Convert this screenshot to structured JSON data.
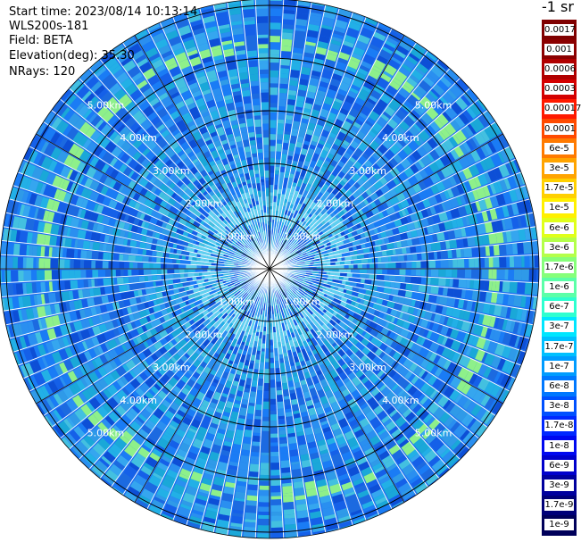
{
  "info": {
    "start_time": "Start time: 2023/08/14 10:13:14",
    "device": "WLS200s-181",
    "field": "Field: BETA",
    "elevation": "Elevation(deg): 35.30",
    "nrays": "NRays: 120"
  },
  "colorbar": {
    "unit": "-1 sr",
    "labels": [
      "0.0017",
      "0.001",
      "0.0006",
      "0.0003",
      "0.00017",
      "0.0001",
      "6e-5",
      "3e-5",
      "1.7e-5",
      "1e-5",
      "6e-6",
      "3e-6",
      "1.7e-6",
      "1e-6",
      "6e-7",
      "3e-7",
      "1.7e-7",
      "1e-7",
      "6e-8",
      "3e-8",
      "1.7e-8",
      "1e-8",
      "6e-9",
      "3e-9",
      "1.7e-9",
      "1e-9"
    ],
    "colors": [
      "#7f0000",
      "#8b0000",
      "#b00000",
      "#d40000",
      "#ff1a00",
      "#ff4a00",
      "#ff7a00",
      "#ffa400",
      "#ffd000",
      "#fff000",
      "#e0ff1a",
      "#b4ff4a",
      "#86ff7a",
      "#5cffa8",
      "#2effd0",
      "#00e6ff",
      "#00c0ff",
      "#009cff",
      "#0078ff",
      "#0050ff",
      "#0028ff",
      "#0008f0",
      "#0000cc",
      "#00009e",
      "#000078",
      "#00005a"
    ]
  },
  "rings": [
    {
      "label": "1.00km"
    },
    {
      "label": "2.00km"
    },
    {
      "label": "3.00km"
    },
    {
      "label": "4.00km"
    },
    {
      "label": "5.00km"
    }
  ],
  "plot": {
    "nrays": 120,
    "max_range_km": 5.1,
    "base_color": "#1e6ff0",
    "gridline_color": "#000000",
    "ray_gap_color": "#ffffff"
  }
}
